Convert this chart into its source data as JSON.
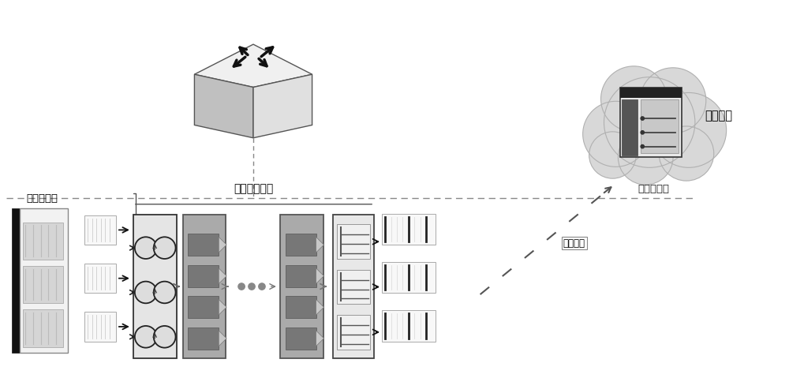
{
  "bg_color": "#ffffff",
  "text_color": "#000000",
  "label_probe": "探测包生成",
  "label_pipeline": "包处理流水线",
  "label_control": "控制平面",
  "label_consistency": "一致性校验",
  "label_log": "日志采样"
}
